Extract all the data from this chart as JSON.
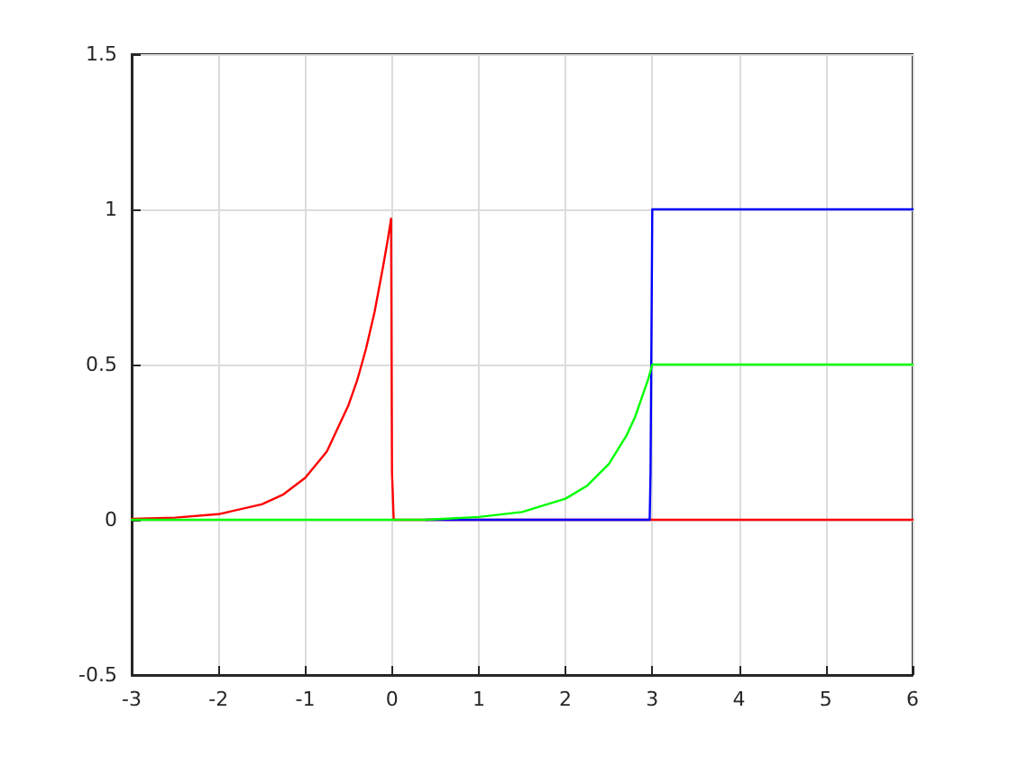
{
  "chart_data": {
    "type": "line",
    "xlim": [
      -3,
      6
    ],
    "xticks": [
      -3,
      -2,
      -1,
      0,
      1,
      2,
      3,
      4,
      5,
      6
    ],
    "ylim": [
      -0.5,
      1.5
    ],
    "yticks": [
      -0.5,
      0,
      0.5,
      1,
      1.5
    ],
    "grid": true,
    "marker": "none",
    "line_style": "solid",
    "series": [
      {
        "color": "#ff0000",
        "x": [
          -3,
          -2.5,
          -2,
          -1.5,
          -1.25,
          -1,
          -0.75,
          -0.5,
          -0.4,
          -0.3,
          -0.2,
          -0.1,
          -0.05,
          -0.01,
          0,
          0.02,
          6
        ],
        "values": [
          0.003,
          0.007,
          0.018,
          0.05,
          0.082,
          0.135,
          0.22,
          0.37,
          0.45,
          0.55,
          0.67,
          0.82,
          0.9,
          0.97,
          0.155,
          0,
          0
        ]
      },
      {
        "color": "#0000ff",
        "x": [
          0.39,
          2.97,
          2.98,
          3,
          6
        ],
        "values": [
          0,
          0,
          0.155,
          1,
          1
        ]
      },
      {
        "color": "#00ff00",
        "x": [
          -3,
          0.39,
          1,
          1.5,
          2,
          2.25,
          2.5,
          2.7,
          2.8,
          2.9,
          2.95,
          3,
          6
        ],
        "values": [
          0,
          0,
          0.009,
          0.025,
          0.068,
          0.11,
          0.18,
          0.27,
          0.33,
          0.41,
          0.45,
          0.5,
          0.5
        ]
      }
    ]
  }
}
